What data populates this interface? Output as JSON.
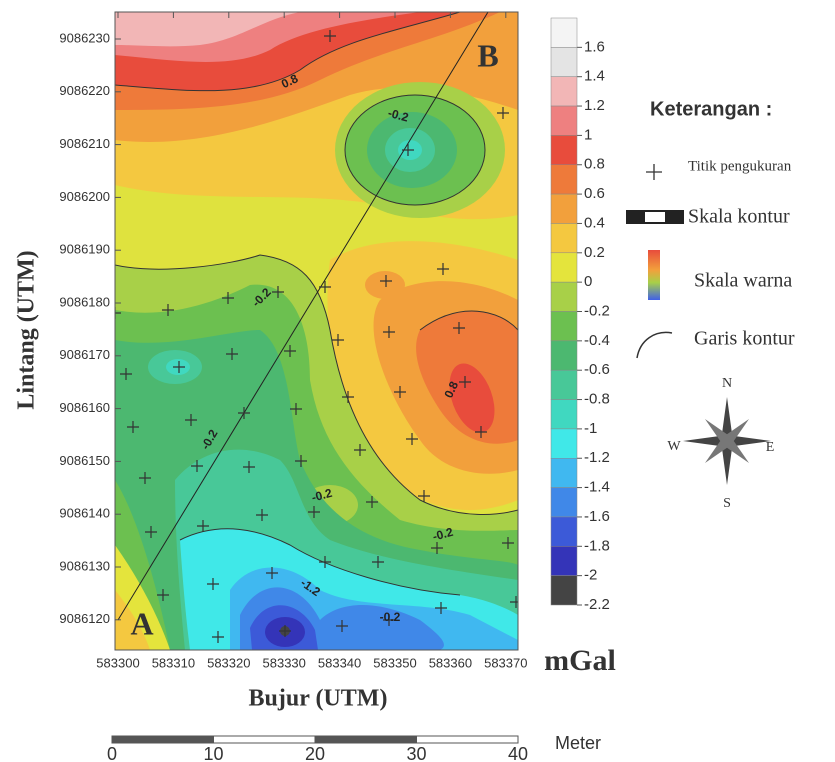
{
  "map": {
    "corner_labels": [
      "A",
      "B"
    ],
    "x_axis": {
      "title": "Bujur (UTM)",
      "ticks": [
        "583300",
        "583310",
        "583320",
        "583330",
        "583340",
        "583350",
        "583360",
        "583370"
      ]
    },
    "y_axis": {
      "title": "Lintang (UTM)",
      "ticks": [
        "9086230",
        "9086220",
        "9086210",
        "9086200",
        "9086190",
        "9086180",
        "9086170",
        "9086160",
        "9086150",
        "9086140",
        "9086130",
        "9086120"
      ]
    },
    "contour_labels": [
      "0.8",
      "-0.2",
      "-0.2",
      "-0.2",
      "0.8",
      "-0.2",
      "-0.2",
      "-1.2",
      "-0.2"
    ]
  },
  "colorbar": {
    "unit": "mGal",
    "levels": [
      {
        "label": "1.6",
        "color": "#f4f4f4"
      },
      {
        "label": "1.4",
        "color": "#e4e4e4"
      },
      {
        "label": "1.2",
        "color": "#f2b6b6"
      },
      {
        "label": "1",
        "color": "#ee8080"
      },
      {
        "label": "0.8",
        "color": "#e84c3c"
      },
      {
        "label": "0.6",
        "color": "#ee7a3a"
      },
      {
        "label": "0.4",
        "color": "#f2a03c"
      },
      {
        "label": "0.2",
        "color": "#f4c840"
      },
      {
        "label": "0",
        "color": "#e4e43c"
      },
      {
        "label": "-0.2",
        "color": "#a8d048"
      },
      {
        "label": "-0.4",
        "color": "#6cc050"
      },
      {
        "label": "-0.6",
        "color": "#4cb870"
      },
      {
        "label": "-0.8",
        "color": "#48c898"
      },
      {
        "label": "-1",
        "color": "#40d8c0"
      },
      {
        "label": "-1.2",
        "color": "#40e8e8"
      },
      {
        "label": "-1.4",
        "color": "#40b8f0"
      },
      {
        "label": "-1.6",
        "color": "#4088e8"
      },
      {
        "label": "-1.8",
        "color": "#3c5ad8"
      },
      {
        "label": "-2",
        "color": "#3434b8"
      },
      {
        "label": "-2.2",
        "color": "#444444"
      }
    ]
  },
  "legend": {
    "title": "Keterangan :",
    "items": [
      "Titik pengukuran",
      "Skala kontur",
      "Skala warna",
      "Garis kontur"
    ]
  },
  "compass": {
    "n": "N",
    "w": "W",
    "e": "E",
    "s": "S"
  },
  "scale_bar": {
    "labels": [
      "0",
      "10",
      "20",
      "30",
      "40"
    ],
    "unit": "Meter"
  }
}
